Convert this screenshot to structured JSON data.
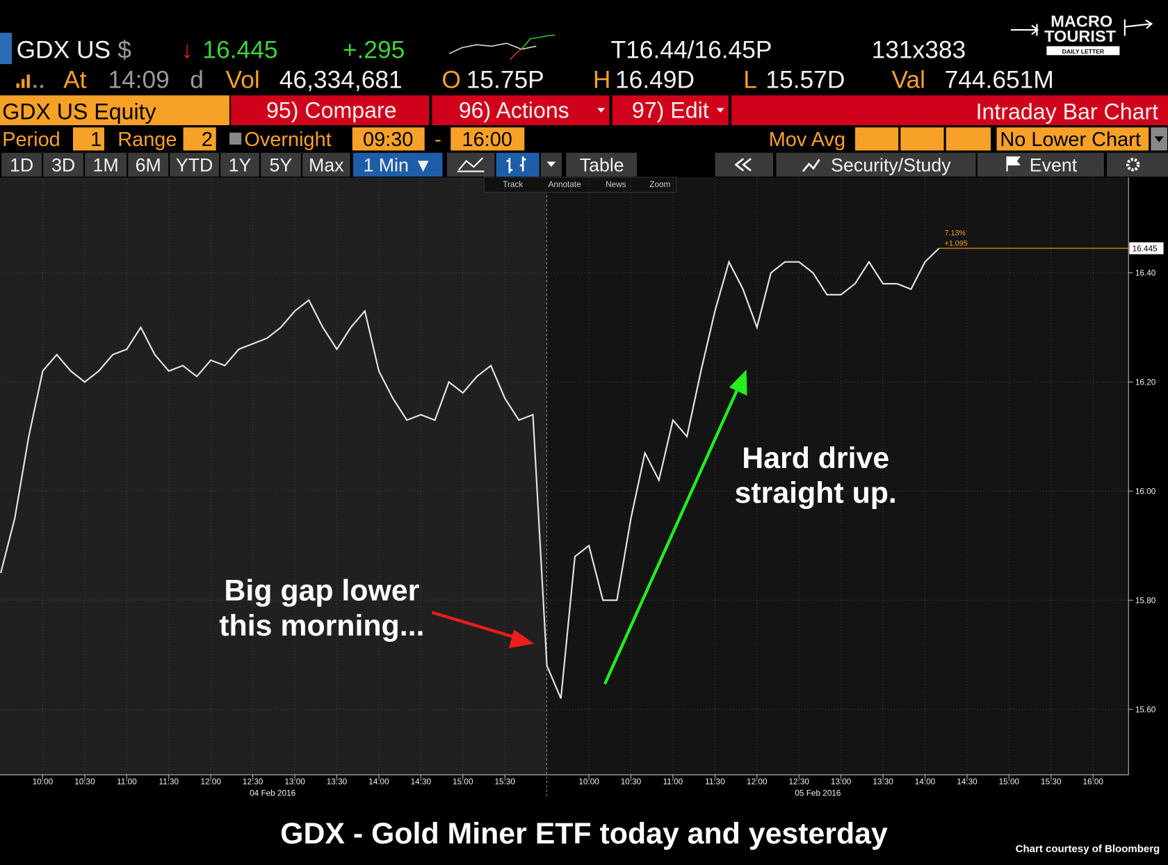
{
  "header": {
    "ticker": "GDX US",
    "currency": "$",
    "direction": "↓",
    "last": "16.445",
    "change": "+.295",
    "quote": "T16.44/16.45P",
    "size": "131x383",
    "at_label": "At",
    "time": "14:09",
    "time_suffix": "d",
    "vol_label": "Vol",
    "vol": "46,334,681",
    "open_label": "O",
    "open": "15.75P",
    "high_label": "H",
    "high": "16.49D",
    "low_label": "L",
    "low": "15.57D",
    "val_label": "Val",
    "val": "744.651M"
  },
  "logo": {
    "line1": "MACRO",
    "line2": "TOURIST",
    "line3": "DAILY LETTER"
  },
  "function_bar": {
    "security": "GDX US Equity",
    "buttons": [
      "95) Compare",
      "96) Actions",
      "97) Edit"
    ],
    "function": "Intraday Bar Chart"
  },
  "settings": {
    "period_label": "Period",
    "period": "1",
    "range_label": "Range",
    "range": "2",
    "overnight": "Overnight",
    "start": "09:30",
    "dash": "-",
    "end": "16:00",
    "mov_avg": "Mov Avg",
    "lower_chart": "No Lower Chart"
  },
  "tabs": [
    "1D",
    "3D",
    "1M",
    "6M",
    "YTD",
    "1Y",
    "5Y",
    "Max",
    "1 Min ▼"
  ],
  "toolbar": {
    "table": "Table",
    "security_study": "Security/Study",
    "event": "Event",
    "tools": [
      "Track",
      "Annotate",
      "News",
      "Zoom"
    ]
  },
  "chart_data": {
    "type": "line",
    "title": "GDX - Gold Miner ETF today and yesterday",
    "categories": [
      null,
      null,
      null,
      "10:00",
      null,
      null,
      "10:30",
      null,
      null,
      "11:00",
      null,
      null,
      "11:30",
      null,
      null,
      "12:00",
      null,
      null,
      "12:30",
      null,
      null,
      "13:00",
      null,
      null,
      "13:30",
      null,
      null,
      "14:00",
      null,
      null,
      "14:30",
      null,
      null,
      "15:00",
      null,
      null,
      "15:30",
      null,
      null,
      null,
      null,
      null,
      "10:00",
      null,
      null,
      "10:30",
      null,
      null,
      "11:00",
      null,
      null,
      "11:30",
      null,
      null,
      "12:00",
      null,
      null,
      "12:30",
      null,
      null,
      "13:00",
      null,
      null,
      "13:30",
      null,
      null,
      "14:00",
      null,
      null,
      "14:30",
      null,
      null,
      "15:00",
      null,
      null,
      "15:30",
      null,
      null,
      "16:00",
      null,
      null
    ],
    "x_group_labels": [
      "04 Feb 2016",
      "05 Feb 2016"
    ],
    "values": [
      15.85,
      15.95,
      16.1,
      16.22,
      16.25,
      16.22,
      16.2,
      16.22,
      16.25,
      16.26,
      16.3,
      16.25,
      16.22,
      16.23,
      16.21,
      16.24,
      16.23,
      16.26,
      16.27,
      16.28,
      16.3,
      16.33,
      16.35,
      16.3,
      16.26,
      16.3,
      16.33,
      16.22,
      16.17,
      16.13,
      16.14,
      16.13,
      16.2,
      16.18,
      16.21,
      16.23,
      16.17,
      16.13,
      16.14,
      15.68,
      15.62,
      15.88,
      15.9,
      15.8,
      15.8,
      15.95,
      16.07,
      16.02,
      16.13,
      16.1,
      16.22,
      16.33,
      16.42,
      16.37,
      16.3,
      16.4,
      16.42,
      16.42,
      16.4,
      16.36,
      16.36,
      16.38,
      16.42,
      16.38,
      16.38,
      16.37,
      16.42,
      16.445,
      null,
      null,
      null,
      null,
      null,
      null,
      null,
      null,
      null,
      null,
      null,
      null,
      null
    ],
    "color": "#e6e6e6",
    "ylim": [
      15.48,
      16.575
    ],
    "yticks": [
      {
        "value": 15.6,
        "label": "15.60"
      },
      {
        "value": 15.8,
        "label": "15.80"
      },
      {
        "value": 16,
        "label": "16.00"
      },
      {
        "value": 16.2,
        "label": "16.20"
      },
      {
        "value": 16.4,
        "label": "16.40"
      }
    ],
    "grid": true,
    "last_price": {
      "value": 16.445,
      "label": "16.445"
    },
    "last_change": [
      "7.13%",
      "+1.095"
    ],
    "annotations": [
      [
        "Big gap lower",
        "this morning..."
      ],
      [
        "Hard drive",
        "straight up."
      ]
    ]
  },
  "credit": "Chart courtesy of Bloomberg"
}
